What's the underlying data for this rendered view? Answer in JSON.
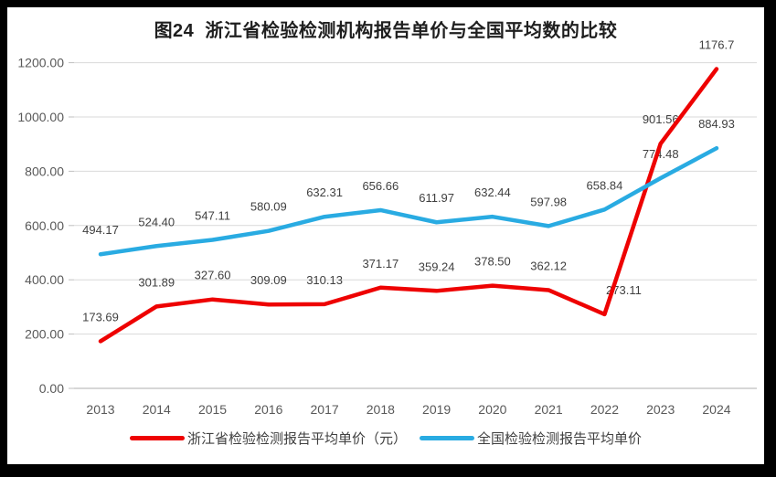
{
  "chart_data": {
    "type": "line",
    "title": "图24  浙江省检验检测机构报告单价与全国平均数的比较",
    "categories": [
      "2013",
      "2014",
      "2015",
      "2016",
      "2017",
      "2018",
      "2019",
      "2020",
      "2021",
      "2022",
      "2023",
      "2024"
    ],
    "series": [
      {
        "id": "zhejiang",
        "name": "浙江省检验检测报告平均单价（元）",
        "color": "#EE0202",
        "values": [
          173.69,
          301.89,
          327.6,
          309.09,
          310.13,
          371.17,
          359.24,
          378.5,
          362.12,
          273.11,
          901.56,
          1176.7
        ],
        "labels": [
          "173.69",
          "301.89",
          "327.60",
          "309.09",
          "310.13",
          "371.17",
          "359.24",
          "378.50",
          "362.12",
          "273.11",
          "901.56",
          "1176.7"
        ],
        "label_offsets": {
          "9": {
            "dx": 21,
            "dy": 0
          }
        }
      },
      {
        "id": "national",
        "name": "全国检验检测报告平均单价",
        "color": "#29ABE2",
        "values": [
          494.17,
          524.4,
          547.11,
          580.09,
          632.31,
          656.66,
          611.97,
          632.44,
          597.98,
          658.84,
          774.48,
          884.93
        ],
        "labels": [
          "494.17",
          "524.40",
          "547.11",
          "580.09",
          "632.31",
          "656.66",
          "611.97",
          "632.44",
          "597.98",
          "658.84",
          "774.48",
          "884.93"
        ]
      }
    ],
    "xlabel": "",
    "ylabel": "",
    "y_axis": {
      "min": 0,
      "max": 1200,
      "step": 200,
      "ticks": [
        {
          "value": 0,
          "label": "0.00"
        },
        {
          "value": 200,
          "label": "200.00"
        },
        {
          "value": 400,
          "label": "400.00"
        },
        {
          "value": 600,
          "label": "600.00"
        },
        {
          "value": 800,
          "label": "800.00"
        },
        {
          "value": 1000,
          "label": "1000.00"
        },
        {
          "value": 1200,
          "label": "1200.00"
        }
      ]
    },
    "grid": true,
    "legend_position": "bottom",
    "colors": {
      "gridline": "#D9D9D9",
      "axis_line": "#BFBFBF",
      "axis_text": "#595959",
      "data_label": "#404040",
      "title_text": "#1F1F1F",
      "panel_background": "#FFFFFF",
      "frame_background": "#000000"
    }
  }
}
